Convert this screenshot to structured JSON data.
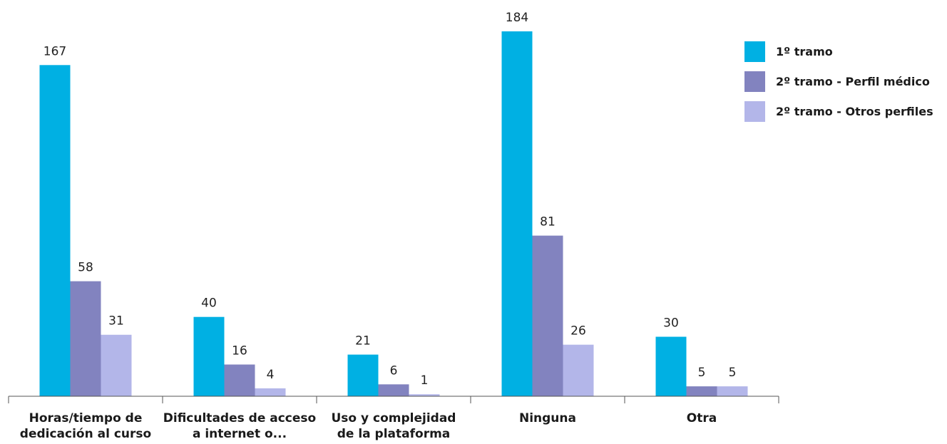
{
  "chart_data": {
    "type": "bar",
    "categories": [
      [
        "Horas/tiempo de",
        "dedicación al curso"
      ],
      [
        "Dificultades de acceso",
        "a internet o..."
      ],
      [
        "Uso y complejidad",
        "de la plataforma"
      ],
      [
        "Ninguna"
      ],
      [
        "Otra"
      ]
    ],
    "series": [
      {
        "name": "1º tramo",
        "color": "#00b0e3",
        "values": [
          167,
          40,
          21,
          184,
          30
        ]
      },
      {
        "name": "2º tramo - Perfil médico",
        "color": "#8283bf",
        "values": [
          58,
          16,
          6,
          81,
          5
        ]
      },
      {
        "name": "2º tramo - Otros perfiles",
        "color": "#b3b6e9",
        "values": [
          31,
          4,
          1,
          26,
          5
        ]
      }
    ],
    "title": "",
    "xlabel": "",
    "ylabel": "",
    "ylim": [
      0,
      184
    ],
    "grid": false,
    "legend": "top-right",
    "data_labels": true,
    "axis_color": "#555555"
  }
}
